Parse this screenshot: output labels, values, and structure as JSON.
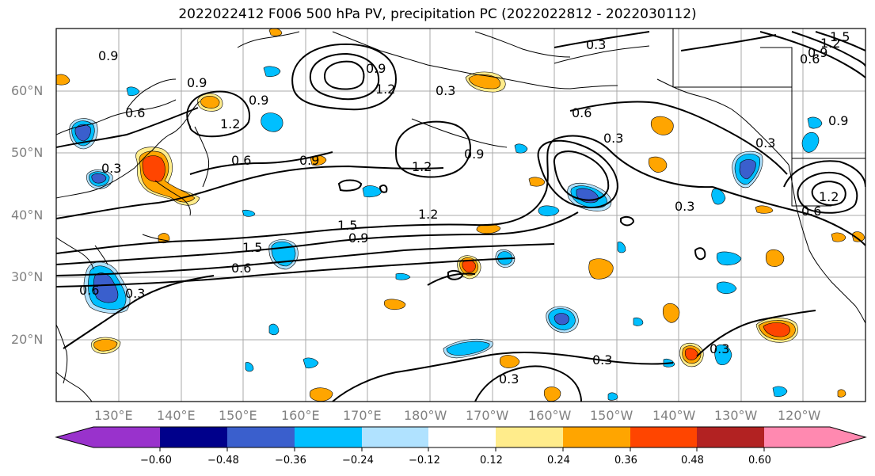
{
  "title": "2022022412 F006 500 hPa PV, precipitation PC (2022022812 - 2022030112)",
  "lat_labels": [
    "60°N",
    "50°N",
    "40°N",
    "30°N",
    "20°N"
  ],
  "lon_labels": [
    "130°E",
    "140°E",
    "150°E",
    "160°E",
    "170°E",
    "180°W",
    "170°W",
    "160°W",
    "150°W",
    "140°W",
    "130°W",
    "120°W"
  ],
  "contour_labels": [
    "0.3",
    "0.6",
    "0.9",
    "1.2",
    "1.5",
    "0.3",
    "0.9",
    "1.2",
    "0.9",
    "0.6",
    "0.9",
    "1.2",
    "0.6",
    "0.9",
    "1.2",
    "1.5",
    "1.5",
    "0.9",
    "0.6",
    "0.3",
    "0.6",
    "0.3",
    "1.2",
    "0.9",
    "0.3",
    "0.3",
    "0.3",
    "0.3",
    "0.6",
    "0.9",
    "0.3",
    "0.6",
    "1.2",
    "0.3",
    "0.9"
  ],
  "colorbar": {
    "tick_labels": [
      "−0.60",
      "−0.48",
      "−0.36",
      "−0.24",
      "−0.12",
      "0.12",
      "0.24",
      "0.36",
      "0.48",
      "0.60"
    ],
    "colors": [
      "#9932cc",
      "#00008b",
      "#3a5fcd",
      "#00bfff",
      "#b0e2ff",
      "#ffffff",
      "#ffec8b",
      "#ffa500",
      "#ff4500",
      "#b22222",
      "#ff89b0"
    ]
  }
}
